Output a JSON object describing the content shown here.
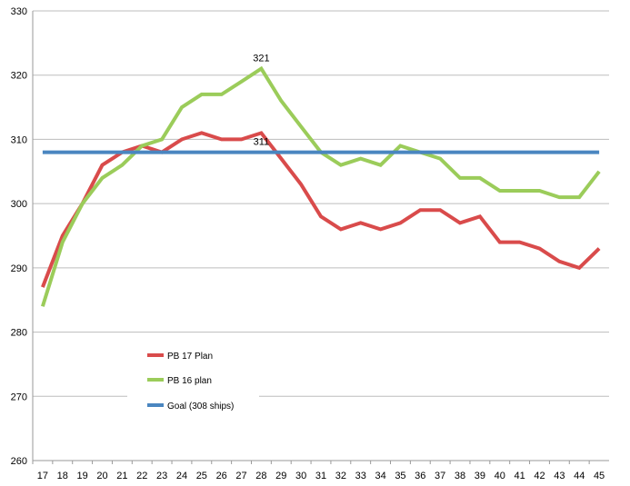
{
  "chart_data": {
    "type": "line",
    "x": [
      17,
      18,
      19,
      20,
      21,
      22,
      23,
      24,
      25,
      26,
      27,
      28,
      29,
      30,
      31,
      32,
      33,
      34,
      35,
      36,
      37,
      38,
      39,
      40,
      41,
      42,
      43,
      44,
      45
    ],
    "ylim": [
      260,
      330
    ],
    "yticks": [
      260,
      270,
      280,
      290,
      300,
      310,
      320,
      330
    ],
    "grid": true,
    "legend": "lower-left",
    "series": [
      {
        "name": "PB 17 Plan",
        "color": "#d94b4b",
        "values": [
          287,
          295,
          300,
          306,
          308,
          309,
          308,
          310,
          311,
          310,
          310,
          311,
          307,
          303,
          298,
          296,
          297,
          296,
          297,
          299,
          299,
          297,
          298,
          294,
          294,
          293,
          291,
          290,
          293
        ]
      },
      {
        "name": "PB 16 plan",
        "color": "#9bcc5a",
        "values": [
          284,
          294,
          300,
          304,
          306,
          309,
          310,
          315,
          317,
          317,
          319,
          321,
          316,
          312,
          308,
          306,
          307,
          306,
          309,
          308,
          307,
          304,
          304,
          302,
          302,
          302,
          301,
          301,
          305
        ]
      },
      {
        "name": "Goal (308 ships)",
        "color": "#4a86c0",
        "values": [
          308,
          308,
          308,
          308,
          308,
          308,
          308,
          308,
          308,
          308,
          308,
          308,
          308,
          308,
          308,
          308,
          308,
          308,
          308,
          308,
          308,
          308,
          308,
          308,
          308,
          308,
          308,
          308,
          308
        ]
      }
    ],
    "annotations": [
      {
        "text": "321",
        "x": 28,
        "y": 321
      },
      {
        "text": "311",
        "x": 28,
        "y": 308
      }
    ]
  }
}
